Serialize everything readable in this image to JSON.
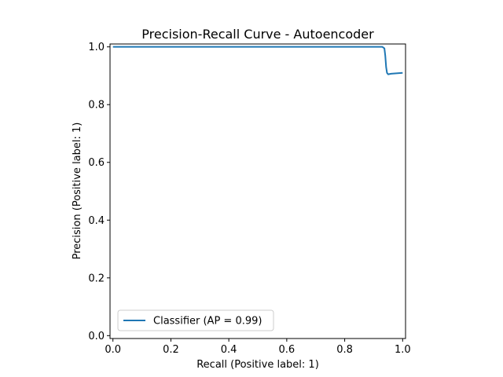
{
  "chart_data": {
    "type": "line",
    "title": "Precision-Recall Curve - Autoencoder",
    "xlabel": "Recall (Positive label: 1)",
    "ylabel": "Precision (Positive label: 1)",
    "xlim": [
      -0.01,
      1.01
    ],
    "ylim": [
      -0.01,
      1.01
    ],
    "xticks": [
      0.0,
      0.2,
      0.4,
      0.6,
      0.8,
      1.0
    ],
    "yticks": [
      0.0,
      0.2,
      0.4,
      0.6,
      0.8,
      1.0
    ],
    "xtick_labels": [
      "0.0",
      "0.2",
      "0.4",
      "0.6",
      "0.8",
      "1.0"
    ],
    "ytick_labels": [
      "0.0",
      "0.2",
      "0.4",
      "0.6",
      "0.8",
      "1.0"
    ],
    "grid": false,
    "legend": {
      "location": "lower-left",
      "entries": [
        "Classifier (AP = 0.99)"
      ]
    },
    "series": [
      {
        "name": "Classifier (AP = 0.99)",
        "color": "#1f77b4",
        "x": [
          0.0,
          0.2,
          0.4,
          0.6,
          0.8,
          0.93,
          0.937,
          0.94,
          0.943,
          0.946,
          0.95,
          0.96,
          1.0
        ],
        "y": [
          1.0,
          1.0,
          1.0,
          1.0,
          1.0,
          1.0,
          0.995,
          0.97,
          0.93,
          0.91,
          0.905,
          0.907,
          0.91
        ]
      }
    ]
  }
}
